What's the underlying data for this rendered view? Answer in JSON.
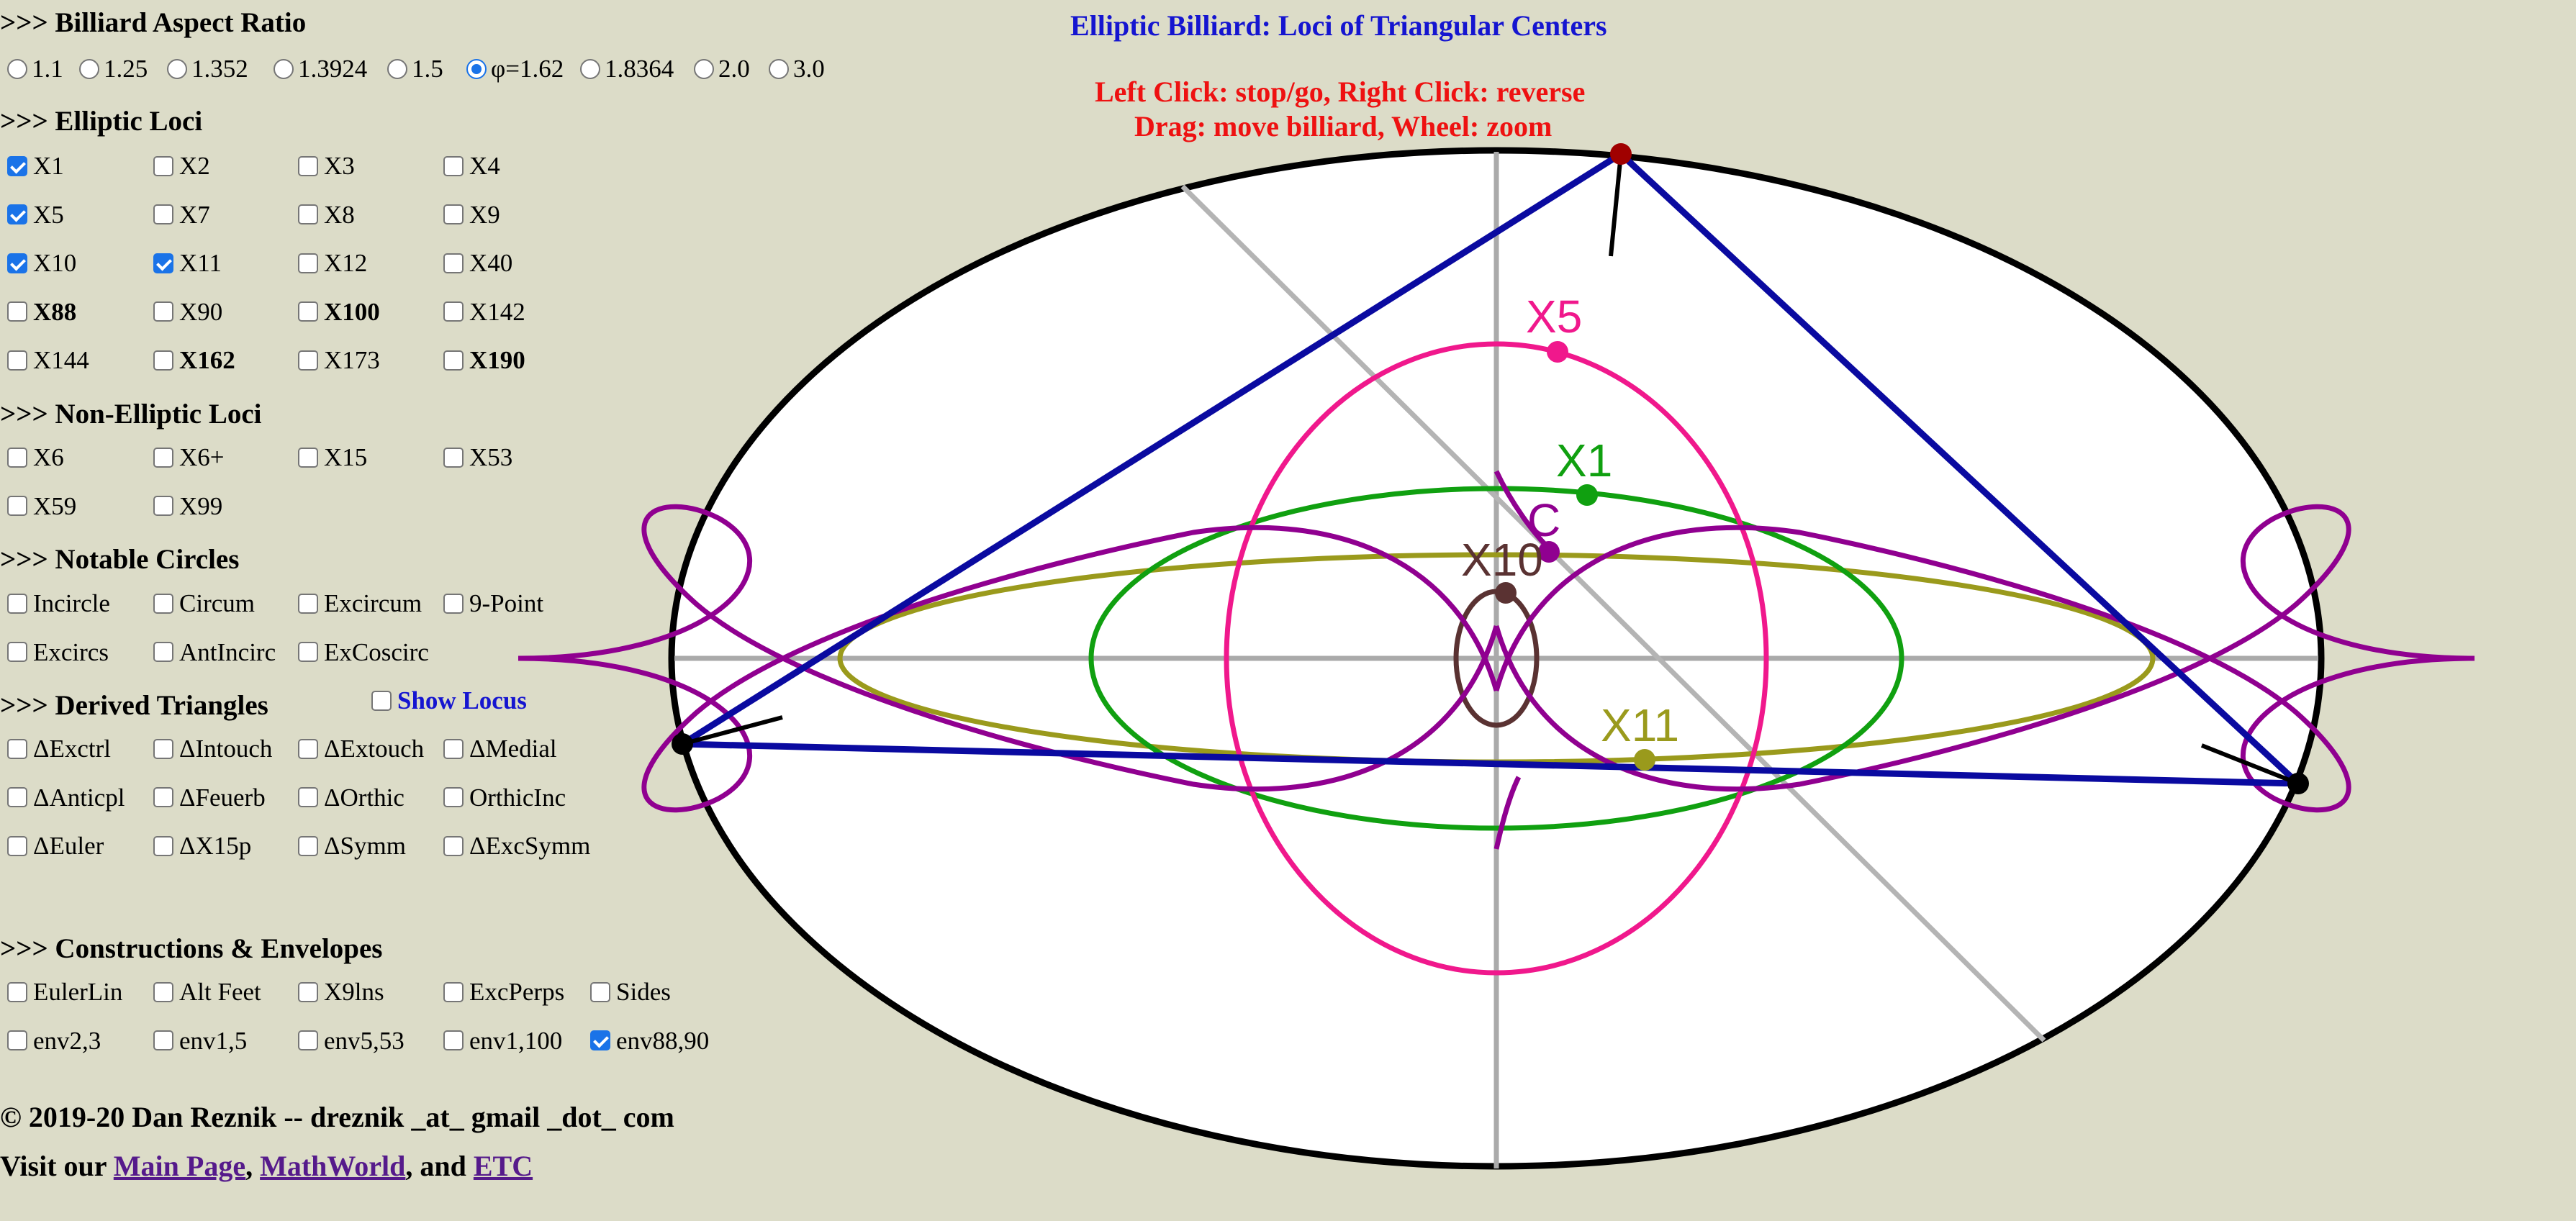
{
  "title": "Elliptic Billiard: Loci of Triangular Centers",
  "instructions": {
    "line1": "Left Click: stop/go, Right Click: reverse",
    "line2": "Drag: move billiard, Wheel: zoom"
  },
  "sections": {
    "aspect": ">>> Billiard Aspect Ratio",
    "elliptic": ">>> Elliptic Loci",
    "nonelliptic": ">>> Non-Elliptic Loci",
    "circles": ">>> Notable Circles",
    "derived": ">>> Derived Triangles",
    "constructions": ">>> Constructions & Envelopes"
  },
  "aspect_options": [
    "1.1",
    "1.25",
    "1.352",
    "1.3924",
    "1.5",
    "φ=1.62",
    "1.8364",
    "2.0",
    "3.0"
  ],
  "aspect_selected": "φ=1.62",
  "elliptic": [
    "X1",
    "X2",
    "X3",
    "X4",
    "X5",
    "X7",
    "X8",
    "X9",
    "X10",
    "X11",
    "X12",
    "X40",
    "X88",
    "X90",
    "X100",
    "X142",
    "X144",
    "X162",
    "X173",
    "X190"
  ],
  "nonelliptic": [
    "X6",
    "X6+",
    "X15",
    "X53",
    "X59",
    "X99"
  ],
  "circles": [
    "Incircle",
    "Circum",
    "Excircum",
    "9-Point",
    "Excircs",
    "AntIncirc",
    "ExCoscirc"
  ],
  "derived": [
    "ΔExctrl",
    "ΔIntouch",
    "ΔExtouch",
    "ΔMedial",
    "ΔAnticpl",
    "ΔFeuerb",
    "ΔOrthic",
    "OrthicInc",
    "ΔEuler",
    "ΔX15p",
    "ΔSymm",
    "ΔExcSymm"
  ],
  "show_locus": "Show Locus",
  "constructions": [
    "EulerLin",
    "Alt Feet",
    "X9lns",
    "ExcPerps",
    "Sides",
    "env2,3",
    "env1,5",
    "env5,53",
    "env1,100",
    "env88,90"
  ],
  "footer": {
    "copyright": "© 2019-20 Dan Reznik -- dreznik _at_ gmail _dot_ com",
    "visit": "Visit our ",
    "link1": "Main Page",
    "sep1": ", ",
    "link2": "MathWorld",
    "sep2": ", and ",
    "link3": "ETC"
  },
  "canvas": {
    "labels": {
      "x5": "X5",
      "x1": "X1",
      "c": "C",
      "x10": "X10",
      "x11": "X11"
    },
    "colors": {
      "billiard": "#000000",
      "triangle": "#0a0aa0",
      "x5": "#f0188c",
      "x1": "#10a010",
      "c": "#900090",
      "x10": "#5a3232",
      "x11": "#9a9a1c",
      "axes": "#aaaaaa",
      "vertex_top": "#a00000"
    }
  }
}
